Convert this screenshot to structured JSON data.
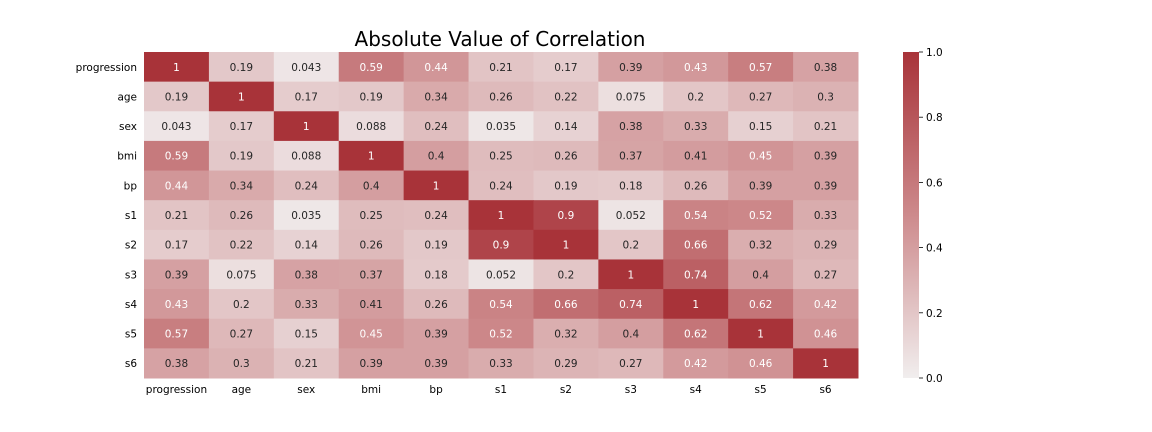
{
  "chart_data": {
    "type": "heatmap",
    "title": "Absolute Value of Correlation",
    "xlabel": "",
    "ylabel": "",
    "x_categories": [
      "progression",
      "age",
      "sex",
      "bmi",
      "bp",
      "s1",
      "s2",
      "s3",
      "s4",
      "s5",
      "s6"
    ],
    "y_categories": [
      "progression",
      "age",
      "sex",
      "bmi",
      "bp",
      "s1",
      "s2",
      "s3",
      "s4",
      "s5",
      "s6"
    ],
    "values": [
      [
        1,
        0.19,
        0.043,
        0.59,
        0.44,
        0.21,
        0.17,
        0.39,
        0.43,
        0.57,
        0.38
      ],
      [
        0.19,
        1,
        0.17,
        0.19,
        0.34,
        0.26,
        0.22,
        0.075,
        0.2,
        0.27,
        0.3
      ],
      [
        0.043,
        0.17,
        1,
        0.088,
        0.24,
        0.035,
        0.14,
        0.38,
        0.33,
        0.15,
        0.21
      ],
      [
        0.59,
        0.19,
        0.088,
        1,
        0.4,
        0.25,
        0.26,
        0.37,
        0.41,
        0.45,
        0.39
      ],
      [
        0.44,
        0.34,
        0.24,
        0.4,
        1,
        0.24,
        0.19,
        0.18,
        0.26,
        0.39,
        0.39
      ],
      [
        0.21,
        0.26,
        0.035,
        0.25,
        0.24,
        1,
        0.9,
        0.052,
        0.54,
        0.52,
        0.33
      ],
      [
        0.17,
        0.22,
        0.14,
        0.26,
        0.19,
        0.9,
        1,
        0.2,
        0.66,
        0.32,
        0.29
      ],
      [
        0.39,
        0.075,
        0.38,
        0.37,
        0.18,
        0.052,
        0.2,
        1,
        0.74,
        0.4,
        0.27
      ],
      [
        0.43,
        0.2,
        0.33,
        0.41,
        0.26,
        0.54,
        0.66,
        0.74,
        1,
        0.62,
        0.42
      ],
      [
        0.57,
        0.27,
        0.15,
        0.45,
        0.39,
        0.52,
        0.32,
        0.4,
        0.62,
        1,
        0.46
      ],
      [
        0.38,
        0.3,
        0.21,
        0.39,
        0.39,
        0.33,
        0.29,
        0.27,
        0.42,
        0.46,
        1
      ]
    ],
    "colorbar": {
      "range": [
        0,
        1
      ],
      "ticks": [
        "0.0",
        "0.2",
        "0.4",
        "0.6",
        "0.8",
        "1.0"
      ],
      "color_low": "#f1eeee",
      "color_high": "#a83339"
    },
    "grid": false,
    "legend": "colorbar-right"
  }
}
